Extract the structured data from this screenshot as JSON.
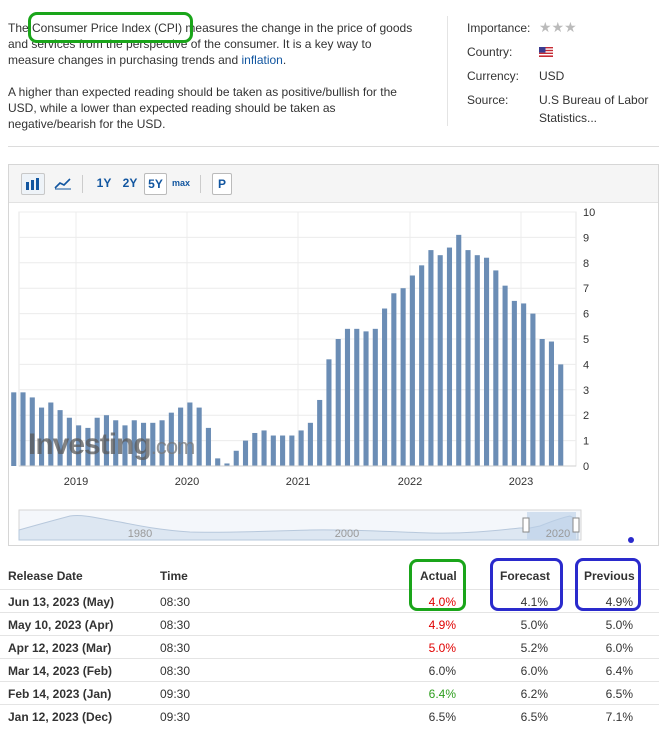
{
  "description": {
    "p1_pre": "The ",
    "p1_highlight": "Consumer Price Index (CPI)",
    "p1_post": " measures the change in the price of goods and services from the perspective of the consumer. It is a key way to measure changes in purchasing trends and ",
    "p1_link": "inflation",
    "p1_end": ".",
    "p2": "A higher than expected reading should be taken as positive/bullish for the USD, while a lower than expected reading should be taken as negative/bearish for the USD."
  },
  "info": {
    "importance_label": "Importance:",
    "importance_stars": "★★★",
    "country_label": "Country:",
    "currency_label": "Currency:",
    "currency_value": "USD",
    "source_label": "Source:",
    "source_value_line1": "U.S Bureau of Labor",
    "source_value_line2": "Statistics..."
  },
  "toolbar": {
    "ranges": [
      "1Y",
      "2Y",
      "5Y",
      "max"
    ],
    "selected_range": "5Y",
    "p_label": "P"
  },
  "watermark": {
    "brand": "Investing",
    "suffix": ".com"
  },
  "navigator": {
    "labels": [
      "1980",
      "2000",
      "2020"
    ]
  },
  "chart_data": {
    "type": "bar",
    "x_tick_labels": [
      "2019",
      "2020",
      "2021",
      "2022",
      "2023"
    ],
    "y_ticks": [
      0,
      1,
      2,
      3,
      4,
      5,
      6,
      7,
      8,
      9,
      10
    ],
    "ylim": [
      0,
      10
    ],
    "grid": true,
    "bar_color": "#6b8db5",
    "start": "2018-06",
    "values": [
      2.9,
      2.9,
      2.7,
      2.3,
      2.5,
      2.2,
      1.9,
      1.6,
      1.5,
      1.9,
      2.0,
      1.8,
      1.6,
      1.8,
      1.7,
      1.7,
      1.8,
      2.1,
      2.3,
      2.5,
      2.3,
      1.5,
      0.3,
      0.1,
      0.6,
      1.0,
      1.3,
      1.4,
      1.2,
      1.2,
      1.2,
      1.4,
      1.7,
      2.6,
      4.2,
      5.0,
      5.4,
      5.4,
      5.3,
      5.4,
      6.2,
      6.8,
      7.0,
      7.5,
      7.9,
      8.5,
      8.3,
      8.6,
      9.1,
      8.5,
      8.3,
      8.2,
      7.7,
      7.1,
      6.5,
      6.4,
      6.0,
      5.0,
      4.9,
      4.0
    ]
  },
  "table": {
    "headers": {
      "date": "Release Date",
      "time": "Time",
      "actual": "Actual",
      "forecast": "Forecast",
      "previous": "Previous"
    },
    "rows": [
      {
        "date": "Jun 13, 2023 (May)",
        "time": "08:30",
        "actual": "4.0%",
        "actual_color": "red",
        "forecast": "4.1%",
        "previous": "4.9%"
      },
      {
        "date": "May 10, 2023 (Apr)",
        "time": "08:30",
        "actual": "4.9%",
        "actual_color": "red",
        "forecast": "5.0%",
        "previous": "5.0%"
      },
      {
        "date": "Apr 12, 2023 (Mar)",
        "time": "08:30",
        "actual": "5.0%",
        "actual_color": "red",
        "forecast": "5.2%",
        "previous": "6.0%"
      },
      {
        "date": "Mar 14, 2023 (Feb)",
        "time": "08:30",
        "actual": "6.0%",
        "actual_color": "black",
        "forecast": "6.0%",
        "previous": "6.4%"
      },
      {
        "date": "Feb 14, 2023 (Jan)",
        "time": "09:30",
        "actual": "6.4%",
        "actual_color": "green",
        "forecast": "6.2%",
        "previous": "6.5%"
      },
      {
        "date": "Jan 12, 2023 (Dec)",
        "time": "09:30",
        "actual": "6.5%",
        "actual_color": "black",
        "forecast": "6.5%",
        "previous": "7.1%"
      }
    ]
  },
  "annotations": {
    "green": "#1aa51a",
    "blue": "#2a2acc"
  }
}
